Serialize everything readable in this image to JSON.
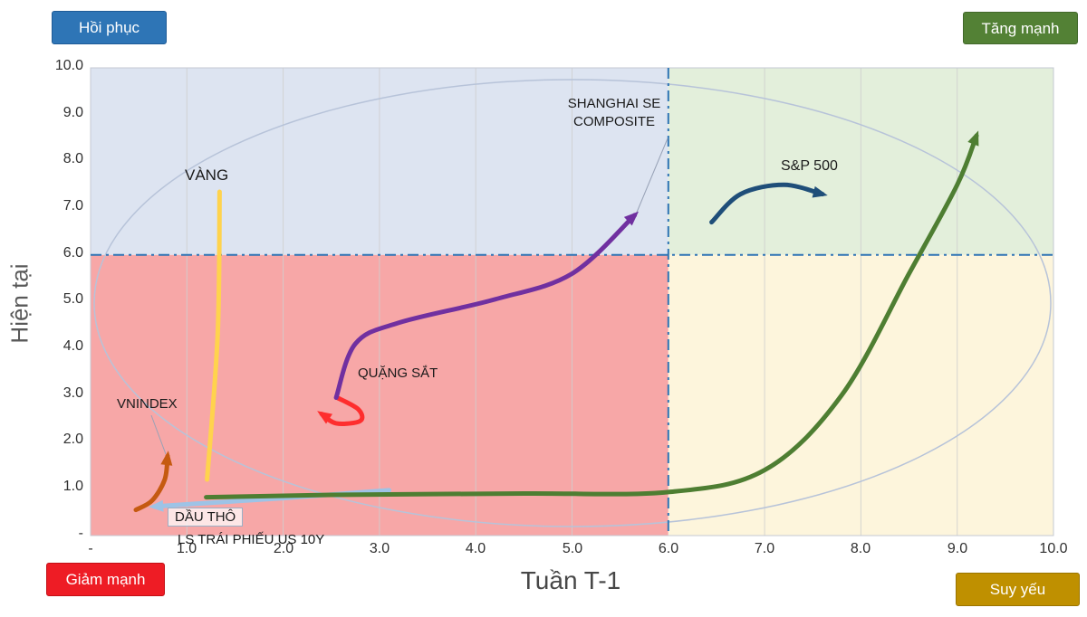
{
  "buttons": {
    "hoi_phuc": {
      "label": "Hồi phục",
      "bg": "#2e75b6"
    },
    "tang_manh": {
      "label": "Tăng mạnh",
      "bg": "#538135"
    },
    "giam_manh": {
      "label": "Giảm mạnh",
      "bg": "#ee1c25"
    },
    "suy_yeu": {
      "label": "Suy yếu",
      "bg": "#bf9000"
    }
  },
  "axes": {
    "x_title": "Tuần T-1",
    "y_title": "Hiện tại",
    "x_ticks": [
      "-",
      "1.0",
      "2.0",
      "3.0",
      "4.0",
      "5.0",
      "6.0",
      "7.0",
      "8.0",
      "9.0",
      "10.0"
    ],
    "y_ticks": [
      "10.0",
      "9.0",
      "8.0",
      "7.0",
      "6.0",
      "5.0",
      "4.0",
      "3.0",
      "2.0",
      "1.0",
      "-"
    ]
  },
  "quadrants": {
    "top_left_fill": "#dde4f1",
    "top_right_fill": "#e3efdb",
    "bottom_left_fill": "#f7a7a7",
    "bottom_right_fill": "#fdf5dc",
    "divider_color": "#2e74b5",
    "divider_x": 6,
    "divider_y": 6
  },
  "annotations": {
    "vang": "VÀNG",
    "vnindex": "VNINDEX",
    "dau_tho": "DẦU THÔ",
    "ls_trai_phieu": "LS TRÁI PHIẾU US 10Y",
    "quang_sat": "QUẶNG SẮT",
    "shanghai_line1": "SHANGHAI SE",
    "shanghai_line2": "COMPOSITE",
    "sp500": "S&P 500"
  },
  "chart_data": {
    "type": "line",
    "title": "",
    "xlabel": "Tuần T-1",
    "ylabel": "Hiện tại",
    "xlim": [
      0,
      10
    ],
    "ylim": [
      0,
      10
    ],
    "grid": "vertical",
    "legend_position": "none",
    "quadrant_labels": {
      "top_left": "Hồi phục",
      "top_right": "Tăng mạnh",
      "bottom_left": "Giảm mạnh",
      "bottom_right": "Suy yếu"
    },
    "series": [
      {
        "id": "vang",
        "name": "VÀNG",
        "color": "#ffd34d",
        "width": 5,
        "arrow": null,
        "points": [
          [
            1.21,
            1.2
          ],
          [
            1.32,
            4.3
          ],
          [
            1.34,
            7.35
          ]
        ]
      },
      {
        "id": "vnindex",
        "name": "VNINDEX",
        "color": "#c55a11",
        "width": 5,
        "arrow": "end",
        "points": [
          [
            0.47,
            0.55
          ],
          [
            0.64,
            0.75
          ],
          [
            0.77,
            1.2
          ],
          [
            0.8,
            1.7
          ]
        ]
      },
      {
        "id": "dau_tho",
        "name": "DẦU THÔ",
        "color": "#9dc3e6",
        "width": 5,
        "arrow": "end",
        "points": [
          [
            3.1,
            0.97
          ],
          [
            2.0,
            0.8
          ],
          [
            1.1,
            0.68
          ],
          [
            0.66,
            0.62
          ]
        ]
      },
      {
        "id": "ls_trai_phieu_us10y",
        "name": "LS TRÁI PHIẾU US 10Y",
        "color": "#4e7e32",
        "width": 5,
        "arrow": "end",
        "points": [
          [
            1.2,
            0.82
          ],
          [
            2.5,
            0.87
          ],
          [
            4.5,
            0.9
          ],
          [
            6.0,
            0.93
          ],
          [
            7.0,
            1.4
          ],
          [
            7.8,
            3.0
          ],
          [
            8.5,
            5.6
          ],
          [
            9.0,
            7.5
          ],
          [
            9.2,
            8.55
          ]
        ]
      },
      {
        "id": "quang_sat",
        "name": "QUẶNG SẮT",
        "color": "#fe2e2e",
        "width": 5,
        "arrow": "end",
        "points": [
          [
            2.56,
            2.95
          ],
          [
            2.78,
            2.7
          ],
          [
            2.8,
            2.45
          ],
          [
            2.55,
            2.4
          ],
          [
            2.4,
            2.6
          ]
        ]
      },
      {
        "id": "shanghai_se_composite",
        "name": "SHANGHAI SE COMPOSITE",
        "color": "#7030a0",
        "width": 5,
        "arrow": "end",
        "points": [
          [
            2.55,
            2.95
          ],
          [
            2.75,
            4.1
          ],
          [
            3.2,
            4.55
          ],
          [
            4.2,
            5.05
          ],
          [
            5.0,
            5.6
          ],
          [
            5.65,
            6.85
          ]
        ]
      },
      {
        "id": "sp500",
        "name": "S&P 500",
        "color": "#1f4e79",
        "width": 5,
        "arrow": "end",
        "points": [
          [
            6.45,
            6.7
          ],
          [
            6.75,
            7.3
          ],
          [
            7.2,
            7.5
          ],
          [
            7.6,
            7.3
          ]
        ]
      }
    ]
  }
}
